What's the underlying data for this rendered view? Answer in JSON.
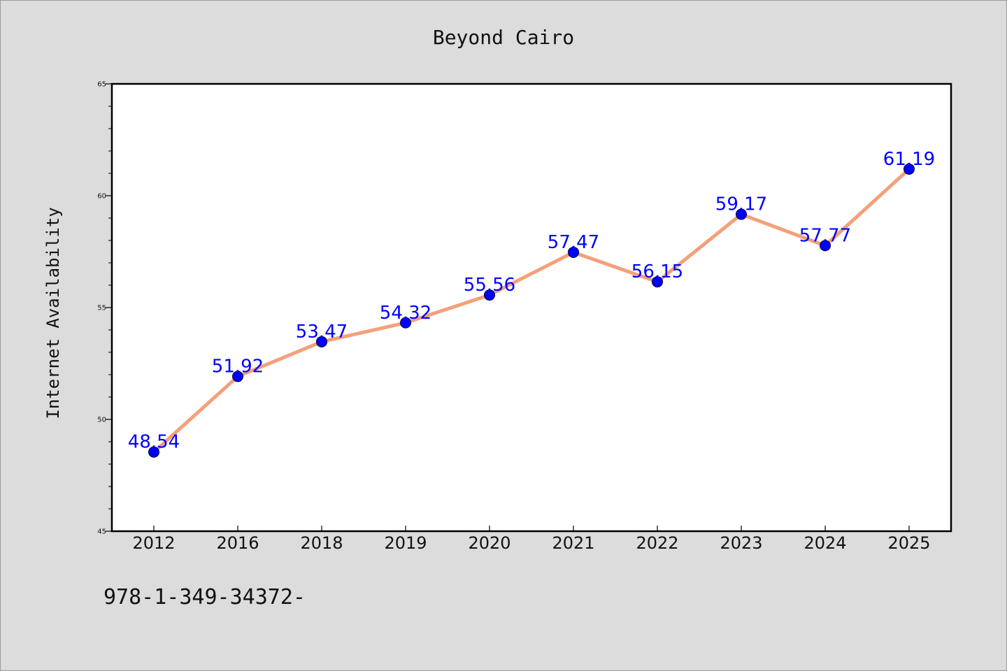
{
  "chart_data": {
    "type": "line",
    "title": "Beyond Cairo",
    "xlabel": "",
    "ylabel": "Internet Availability",
    "categories": [
      "2012",
      "2016",
      "2018",
      "2019",
      "2020",
      "2021",
      "2022",
      "2023",
      "2024",
      "2025"
    ],
    "series": [
      {
        "values": [
          48.54,
          51.92,
          53.47,
          54.32,
          55.56,
          57.47,
          56.15,
          59.17,
          57.77,
          61.19
        ],
        "labels": [
          "48.54",
          "51.92",
          "53.47",
          "54.32",
          "55.56",
          "57.47",
          "56.15",
          "59.17",
          "57.77",
          "61.19"
        ],
        "line_color": "#f4a07a",
        "marker_color": "#0000ff"
      }
    ],
    "ylim": [
      45,
      65
    ],
    "yticks": [
      45,
      50,
      55,
      60,
      65
    ],
    "grid": false,
    "legend": "none"
  },
  "footer": {
    "text": "978-1-349-34372-"
  }
}
